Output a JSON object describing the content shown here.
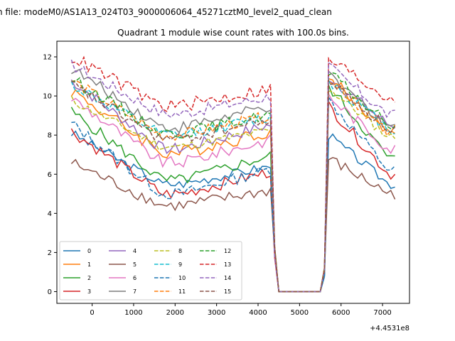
{
  "figure": {
    "suptitle": "n file: modeM0/AS1A13_024T03_9000006064_45271cztM0_level2_quad_clean",
    "title": "Quadrant 1 module wise count rates with 100.0s bins.",
    "x_offset_label": "+4.4531e8"
  },
  "chart_data": {
    "type": "line",
    "title": "Quadrant 1 module wise count rates with 100.0s bins.",
    "xlabel": "",
    "ylabel": "",
    "x_offset": "+4.4531e8",
    "xlim": [
      -850,
      7650
    ],
    "ylim": [
      -0.6,
      12.8
    ],
    "xticks": [
      0,
      1000,
      2000,
      3000,
      4000,
      5000,
      6000,
      7000
    ],
    "yticks": [
      0,
      2,
      4,
      6,
      8,
      10,
      12
    ],
    "grid": false,
    "legend_placement": "lower-left",
    "legend_columns": 4,
    "x_segments": [
      {
        "start": -500,
        "end": 4300,
        "step": 100
      },
      {
        "start": 4400,
        "end": 5600,
        "step": 100
      },
      {
        "start": 5700,
        "end": 7300,
        "step": 100
      }
    ],
    "series": [
      {
        "name": "0",
        "color": "#1f77b4",
        "dash": "solid",
        "level1": 8.1,
        "level2": 5.5,
        "level3": 8.0,
        "drop": 2.6,
        "amp": 0.25
      },
      {
        "name": "1",
        "color": "#ff7f0e",
        "dash": "solid",
        "level1": 10.3,
        "level2": 8.2,
        "level3": 11.0,
        "drop": 3.2,
        "amp": 0.35
      },
      {
        "name": "2",
        "color": "#2ca02c",
        "dash": "solid",
        "level1": 9.2,
        "level2": 6.8,
        "level3": 10.5,
        "drop": 3.5,
        "amp": 0.3
      },
      {
        "name": "3",
        "color": "#d62728",
        "dash": "solid",
        "level1": 8.2,
        "level2": 6.0,
        "level3": 9.5,
        "drop": 3.2,
        "amp": 0.3
      },
      {
        "name": "4",
        "color": "#9467bd",
        "dash": "solid",
        "level1": 10.8,
        "level2": 8.5,
        "level3": 11.0,
        "drop": 3.5,
        "amp": 0.3
      },
      {
        "name": "5",
        "color": "#8c564b",
        "dash": "solid",
        "level1": 6.6,
        "level2": 5.0,
        "level3": 6.8,
        "drop": 2.2,
        "amp": 0.3
      },
      {
        "name": "6",
        "color": "#e377c2",
        "dash": "solid",
        "level1": 9.9,
        "level2": 7.3,
        "level3": 10.0,
        "drop": 3.3,
        "amp": 0.3
      },
      {
        "name": "7",
        "color": "#7f7f7f",
        "dash": "solid",
        "level1": 11.4,
        "level2": 8.5,
        "level3": 11.0,
        "drop": 3.0,
        "amp": 0.3
      },
      {
        "name": "8",
        "color": "#bcbd22",
        "dash": "dashed",
        "level1": 9.8,
        "level2": 7.9,
        "level3": 10.4,
        "drop": 2.4,
        "amp": 0.25
      },
      {
        "name": "9",
        "color": "#17becf",
        "dash": "dashed",
        "level1": 10.6,
        "level2": 8.3,
        "level3": 10.8,
        "drop": 2.6,
        "amp": 0.3
      },
      {
        "name": "10",
        "color": "#1f77b4",
        "dash": "dashed",
        "level1": 8.6,
        "level2": 6.2,
        "level3": 9.8,
        "drop": 3.6,
        "amp": 0.3
      },
      {
        "name": "11",
        "color": "#ff7f0e",
        "dash": "dashed",
        "level1": 10.8,
        "level2": 8.0,
        "level3": 11.0,
        "drop": 2.8,
        "amp": 0.3
      },
      {
        "name": "12",
        "color": "#2ca02c",
        "dash": "dashed",
        "level1": 10.9,
        "level2": 8.5,
        "level3": 11.2,
        "drop": 2.8,
        "amp": 0.3
      },
      {
        "name": "13",
        "color": "#d62728",
        "dash": "dashed",
        "level1": 12.0,
        "level2": 9.9,
        "level3": 11.9,
        "drop": 2.5,
        "amp": 0.35
      },
      {
        "name": "14",
        "color": "#9467bd",
        "dash": "dashed",
        "level1": 11.6,
        "level2": 9.0,
        "level3": 11.5,
        "drop": 2.5,
        "amp": 0.3
      },
      {
        "name": "15",
        "color": "#8c564b",
        "dash": "dashed",
        "level1": 10.6,
        "level2": 8.3,
        "level3": 10.8,
        "drop": 2.8,
        "amp": 0.3
      }
    ]
  }
}
